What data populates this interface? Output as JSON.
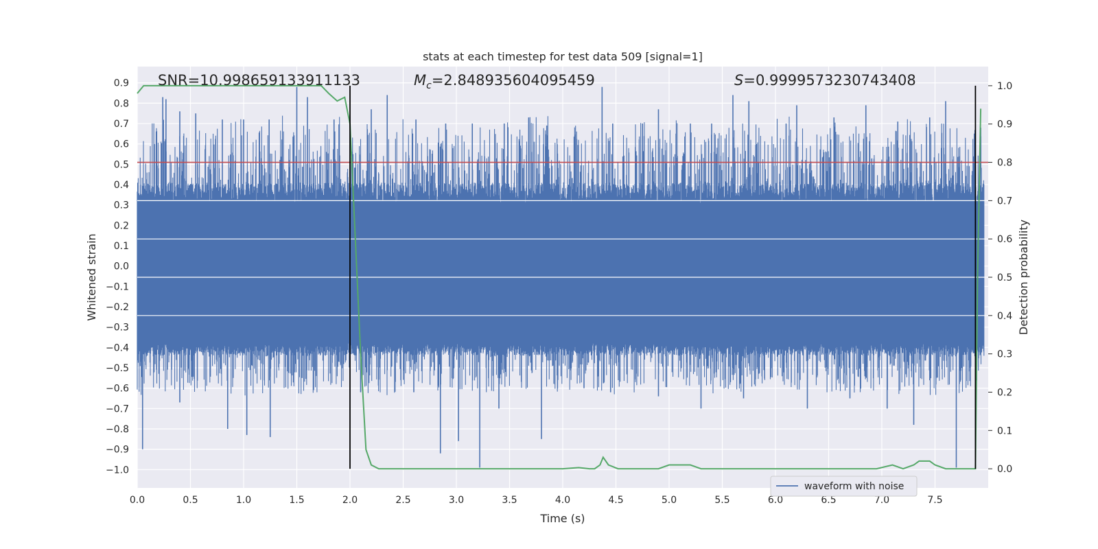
{
  "chart_data": {
    "type": "line",
    "title": "stats at each timestep for test data 509 [signal=1]",
    "xlabel": "Time (s)",
    "ylabel": "Whitened strain",
    "ylabel_right": "Detection probability",
    "xlim": [
      0.0,
      8.0
    ],
    "ylim": [
      -1.09,
      0.98
    ],
    "ylim_right": [
      -0.05,
      1.05
    ],
    "x_ticks": [
      "0.0",
      "0.5",
      "1.0",
      "1.5",
      "2.0",
      "2.5",
      "3.0",
      "3.5",
      "4.0",
      "4.5",
      "5.0",
      "5.5",
      "6.0",
      "6.5",
      "7.0",
      "7.5"
    ],
    "y_ticks": [
      "0.9",
      "0.8",
      "0.7",
      "0.6",
      "0.5",
      "0.4",
      "0.3",
      "0.2",
      "0.1",
      "0.0",
      "−0.1",
      "−0.2",
      "−0.3",
      "−0.4",
      "−0.5",
      "−0.6",
      "−0.7",
      "−0.8",
      "−0.9",
      "−1.0"
    ],
    "y_right_ticks": [
      "1.0",
      "0.9",
      "0.8",
      "0.7",
      "0.6",
      "0.5",
      "0.4",
      "0.3",
      "0.2",
      "0.1",
      "0.0"
    ],
    "grid": true,
    "legend": {
      "position": "lower-right",
      "entries": [
        "waveform with noise"
      ]
    },
    "annotations": {
      "snr": "SNR=10.998659133911133",
      "mc_symbol": "M",
      "mc_sub": "c",
      "mc_value": "=2.848935604095459",
      "s_symbol": "S",
      "s_value": "=0.9999573230743408"
    },
    "threshold": 0.8,
    "vlines": [
      2.0,
      7.88
    ],
    "colors": {
      "waveform": "#4c72b0",
      "probability": "#55a868",
      "threshold": "#c44e52",
      "vline": "#000000",
      "plot_bg": "#eaeaf2",
      "grid": "#ffffff"
    },
    "series": [
      {
        "name": "waveform with noise",
        "envelope": {
          "body_top": 0.31,
          "body_bottom": -0.38,
          "spike_max": 0.88,
          "spike_min": -0.99,
          "peaks_top": [
            [
              0.24,
              0.83
            ],
            [
              0.27,
              0.82
            ],
            [
              0.4,
              0.76
            ],
            [
              0.55,
              0.75
            ],
            [
              0.8,
              0.72
            ],
            [
              1.0,
              0.72
            ],
            [
              1.24,
              0.72
            ],
            [
              1.5,
              0.88
            ],
            [
              1.6,
              0.83
            ],
            [
              1.85,
              0.72
            ],
            [
              2.2,
              0.77
            ],
            [
              2.35,
              0.84
            ],
            [
              2.62,
              0.72
            ],
            [
              2.9,
              0.7
            ],
            [
              3.15,
              0.7
            ],
            [
              3.45,
              0.7
            ],
            [
              3.68,
              0.73
            ],
            [
              3.85,
              0.69
            ],
            [
              4.37,
              0.88
            ],
            [
              4.47,
              0.7
            ],
            [
              4.75,
              0.7
            ],
            [
              4.9,
              0.77
            ],
            [
              5.2,
              0.7
            ],
            [
              5.4,
              0.7
            ],
            [
              5.6,
              0.84
            ],
            [
              5.75,
              0.81
            ],
            [
              6.1,
              0.7
            ],
            [
              6.2,
              0.79
            ],
            [
              6.55,
              0.73
            ],
            [
              6.85,
              0.79
            ],
            [
              7.15,
              0.71
            ],
            [
              7.45,
              0.73
            ],
            [
              7.6,
              0.81
            ],
            [
              7.93,
              0.68
            ]
          ],
          "peaks_bottom": [
            [
              0.05,
              -0.9
            ],
            [
              0.4,
              -0.67
            ],
            [
              0.85,
              -0.8
            ],
            [
              1.03,
              -0.83
            ],
            [
              1.25,
              -0.84
            ],
            [
              1.55,
              -0.55
            ],
            [
              2.1,
              -0.62
            ],
            [
              2.6,
              -0.62
            ],
            [
              2.85,
              -0.92
            ],
            [
              3.02,
              -0.86
            ],
            [
              3.22,
              -0.99
            ],
            [
              3.4,
              -0.7
            ],
            [
              3.8,
              -0.85
            ],
            [
              4.2,
              -0.6
            ],
            [
              4.45,
              -0.62
            ],
            [
              4.9,
              -0.64
            ],
            [
              5.3,
              -0.7
            ],
            [
              5.7,
              -0.65
            ],
            [
              6.3,
              -0.7
            ],
            [
              6.7,
              -0.65
            ],
            [
              7.05,
              -0.7
            ],
            [
              7.3,
              -0.78
            ],
            [
              7.7,
              -0.99
            ]
          ]
        }
      },
      {
        "name": "",
        "axis": "right",
        "x": [
          0.0,
          0.06,
          0.15,
          0.3,
          0.5,
          0.8,
          1.0,
          1.3,
          1.5,
          1.6,
          1.73,
          1.8,
          1.88,
          1.95,
          2.0,
          2.05,
          2.1,
          2.15,
          2.2,
          2.27,
          2.4,
          2.6,
          2.8,
          3.0,
          3.2,
          3.4,
          3.55,
          3.7,
          4.0,
          4.15,
          4.25,
          4.3,
          4.35,
          4.38,
          4.43,
          4.52,
          4.7,
          4.9,
          5.0,
          5.1,
          5.2,
          5.3,
          5.5,
          5.7,
          6.0,
          6.2,
          6.5,
          6.8,
          6.95,
          7.1,
          7.2,
          7.3,
          7.35,
          7.45,
          7.5,
          7.6,
          7.7,
          7.8,
          7.85,
          7.88,
          7.9,
          7.93
        ],
        "y": [
          0.98,
          1.0,
          1.0,
          1.0,
          1.0,
          1.0,
          1.0,
          1.0,
          1.0,
          1.0,
          1.0,
          0.98,
          0.96,
          0.97,
          0.9,
          0.6,
          0.3,
          0.05,
          0.01,
          0.0,
          0.0,
          0.0,
          0.0,
          0.0,
          0.0,
          0.0,
          0.0,
          0.0,
          0.0,
          0.003,
          0.0,
          0.0,
          0.01,
          0.03,
          0.01,
          0.0,
          0.0,
          0.0,
          0.01,
          0.01,
          0.01,
          0.0,
          0.0,
          0.0,
          0.0,
          0.0,
          0.0,
          0.0,
          0.0,
          0.01,
          0.0,
          0.01,
          0.02,
          0.02,
          0.01,
          0.0,
          0.0,
          0.0,
          0.0,
          0.0,
          0.5,
          0.94
        ]
      }
    ]
  }
}
